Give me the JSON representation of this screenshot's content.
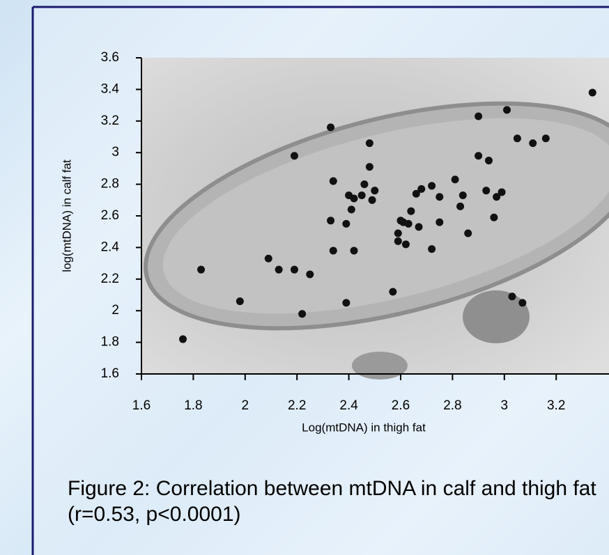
{
  "chart_data": {
    "type": "scatter",
    "x_label": "Log(mtDNA) in thigh fat",
    "y_label": "log(mtDNA) in calf fat",
    "caption": "Figure 2: Correlation between mtDNA in calf and thigh fat (r=0.53, p<0.0001)",
    "xlim": [
      1.6,
      3.4
    ],
    "ylim": [
      1.6,
      3.6
    ],
    "xticks": [
      1.6,
      1.8,
      2,
      2.2,
      2.4,
      2.6,
      2.8,
      3,
      3.2
    ],
    "yticks": [
      1.6,
      1.8,
      2,
      2.2,
      2.4,
      2.6,
      2.8,
      3,
      3.2,
      3.4,
      3.6
    ],
    "color": "#111111",
    "series": [
      {
        "x": [
          1.76,
          1.83,
          1.98,
          2.09,
          2.13,
          2.19,
          2.19,
          2.22,
          2.25,
          2.33,
          2.34,
          2.33,
          2.34,
          2.39,
          2.39,
          2.4,
          2.41,
          2.42,
          2.42,
          2.45,
          2.46,
          2.48,
          2.48,
          2.49,
          2.5,
          2.57,
          2.59,
          2.59,
          2.6,
          2.61,
          2.62,
          2.63,
          2.64,
          2.72,
          2.66,
          2.68,
          2.67,
          2.72,
          2.75,
          2.75,
          2.81,
          2.83,
          2.84,
          2.86,
          2.9,
          2.9,
          2.94,
          2.93,
          2.96,
          2.97,
          2.99,
          3.01,
          3.03,
          3.05,
          3.07,
          3.11,
          3.16,
          3.34
        ],
        "values": [
          1.82,
          2.26,
          2.06,
          2.33,
          2.26,
          2.26,
          2.98,
          1.98,
          2.23,
          3.16,
          2.82,
          2.57,
          2.38,
          2.55,
          2.05,
          2.73,
          2.64,
          2.71,
          2.38,
          2.73,
          2.8,
          3.06,
          2.91,
          2.7,
          2.76,
          2.12,
          2.49,
          2.44,
          2.57,
          2.56,
          2.42,
          2.55,
          2.63,
          2.39,
          2.74,
          2.77,
          2.53,
          2.79,
          2.72,
          2.56,
          2.83,
          2.66,
          2.73,
          2.49,
          3.23,
          2.98,
          2.95,
          2.76,
          2.59,
          2.72,
          2.75,
          3.27,
          2.09,
          3.09,
          2.05,
          3.06,
          3.09,
          3.38
        ]
      }
    ]
  }
}
